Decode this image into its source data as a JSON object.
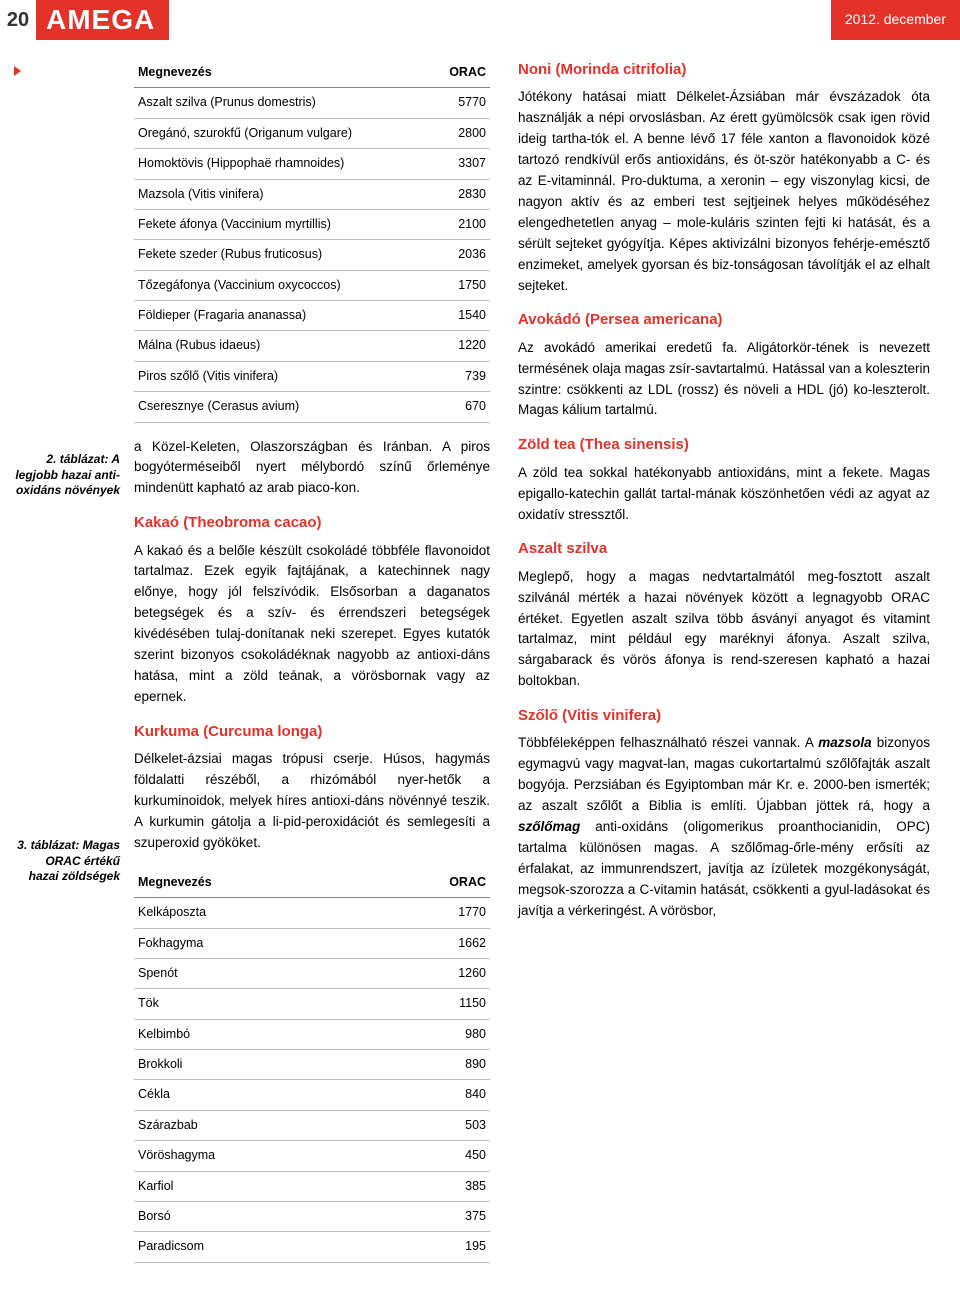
{
  "header": {
    "page_num": "20",
    "brand": "AMEGA",
    "date": "2012. december"
  },
  "table1": {
    "col1_header": "Megnevezés",
    "col2_header": "ORAC",
    "rows": [
      [
        "Aszalt szilva (Prunus domestris)",
        "5770"
      ],
      [
        "Oregánó, szurokfű (Origanum vulgare)",
        "2800"
      ],
      [
        "Homoktövis (Hippophaë rhamnoides)",
        "3307"
      ],
      [
        "Mazsola (Vitis vinifera)",
        "2830"
      ],
      [
        "Fekete áfonya (Vaccinium myrtillis)",
        "2100"
      ],
      [
        "Fekete szeder (Rubus fruticosus)",
        "2036"
      ],
      [
        "Tőzegáfonya (Vaccinium oxycoccos)",
        "1750"
      ],
      [
        "Földieper (Fragaria ananassa)",
        "1540"
      ],
      [
        "Málna (Rubus idaeus)",
        "1220"
      ],
      [
        "Piros szőlő (Vitis vinifera)",
        "739"
      ],
      [
        "Cseresznye (Cerasus avium)",
        "670"
      ]
    ]
  },
  "caption1": "2. táblázat: A legjobb hazai anti-oxidáns növények",
  "left_p1": "a Közel-Keleten, Olaszországban és Iránban. A piros bogyóterméseiből nyert mélybordó színű őrleménye mindenütt kapható az arab piaco-kon.",
  "h_kakao": "Kakaó (Theobroma cacao)",
  "left_p2": "A kakaó és a belőle készült csokoládé többféle flavonoidot tartalmaz. Ezek egyik fajtájának, a katechinnek nagy előnye, hogy jól felszívódik. Elsősorban a daganatos betegségek és a szív- és érrendszeri betegségek kivédésében tulaj-donítanak neki szerepet. Egyes kutatók szerint bizonyos csokoládéknak nagyobb az antioxi-dáns hatása, mint a zöld teának, a vörösbornak vagy az epernek.",
  "h_kurkuma": "Kurkuma (Curcuma longa)",
  "left_p3": "Délkelet-ázsiai magas trópusi cserje. Húsos, hagymás földalatti részéből, a rhizómából nyer-hetők a kurkuminoidok, melyek híres antioxi-dáns növénnyé teszik. A kurkumin gátolja a li-pid-peroxidációt és semlegesíti a szuperoxid gyököket.",
  "caption2": "3. táblázat: Magas ORAC értékű hazai zöldségek",
  "table2": {
    "col1_header": "Megnevezés",
    "col2_header": "ORAC",
    "rows": [
      [
        "Kelkáposzta",
        "1770"
      ],
      [
        "Fokhagyma",
        "1662"
      ],
      [
        "Spenót",
        "1260"
      ],
      [
        "Tök",
        "1150"
      ],
      [
        "Kelbimbó",
        "980"
      ],
      [
        "Brokkoli",
        "890"
      ],
      [
        "Cékla",
        "840"
      ],
      [
        "Szárazbab",
        "503"
      ],
      [
        "Vöröshagyma",
        "450"
      ],
      [
        "Karfiol",
        "385"
      ],
      [
        "Borsó",
        "375"
      ],
      [
        "Paradicsom",
        "195"
      ]
    ]
  },
  "h_noni": "Noni (Morinda citrifolia)",
  "r_p1": "Jótékony hatásai miatt Délkelet-Ázsiában már évszázadok óta használják a népi orvoslásban. Az érett gyümölcsök csak igen rövid ideig tartha-tók el. A benne lévő 17 féle xanton a flavonoidok közé tartozó rendkívül erős antioxidáns, és öt-ször hatékonyabb a C- és az E-vitaminnál. Pro-duktuma, a xeronin – egy viszonylag kicsi, de nagyon aktív és az emberi test sejtjeinek helyes működéséhez elengedhetetlen anyag – mole-kuláris szinten fejti ki hatását, és a sérült sejteket gyógyítja. Képes aktivizálni bizonyos fehérje-emésztő enzimeket, amelyek gyorsan és biz-tonságosan távolítják el az elhalt sejteket.",
  "h_avokado": "Avokádó (Persea americana)",
  "r_p2": "Az avokádó amerikai eredetű fa. Aligátorkör-tének is nevezett termésének olaja magas zsír-savtartalmú. Hatással van a koleszterin szintre: csökkenti az LDL (rossz) és növeli a HDL (jó) ko-leszterolt. Magas kálium tartalmú.",
  "h_zoldtea": "Zöld tea (Thea sinensis)",
  "r_p3": "A zöld tea sokkal hatékonyabb antioxidáns, mint a fekete. Magas epigallo-katechin gallát tartal-mának köszönhetően védi az agyat az oxidatív stressztől.",
  "h_aszalt": "Aszalt szilva",
  "r_p4": "Meglepő, hogy a magas nedvtartalmától meg-fosztott aszalt szilvánál mérték a hazai növények között a legnagyobb ORAC értéket. Egyetlen aszalt szilva több ásványi anyagot és vitamint tartalmaz, mint például egy maréknyi áfonya. Aszalt szilva, sárgabarack és vörös áfonya is rend-szeresen kapható a hazai boltokban.",
  "h_szolo": "Szőlő (Vitis vinifera)",
  "r_p5_a": "Többféleképpen felhasználható részei vannak. A ",
  "r_p5_b": "mazsola",
  "r_p5_c": " bizonyos egymagvú vagy magvat-lan, magas cukortartalmú szőlőfajták aszalt bogyója. Perzsiában és Egyiptomban már Kr. e. 2000-ben ismerték; az aszalt szőlőt a Biblia is említi. Újabban jöttek rá, hogy a ",
  "r_p5_d": "szőlőmag",
  "r_p5_e": " anti-oxidáns (oligomerikus proanthocianidin, OPC) tartalma különösen magas. A szőlőmag-őrle-mény erősíti az érfalakat, az immunrendszert, javítja az ízületek mozgékonyságát, megsok-szorozza a C-vitamin hatását, csökkenti a gyul-ladásokat és javítja a vérkeringést. A vörösbor,"
}
